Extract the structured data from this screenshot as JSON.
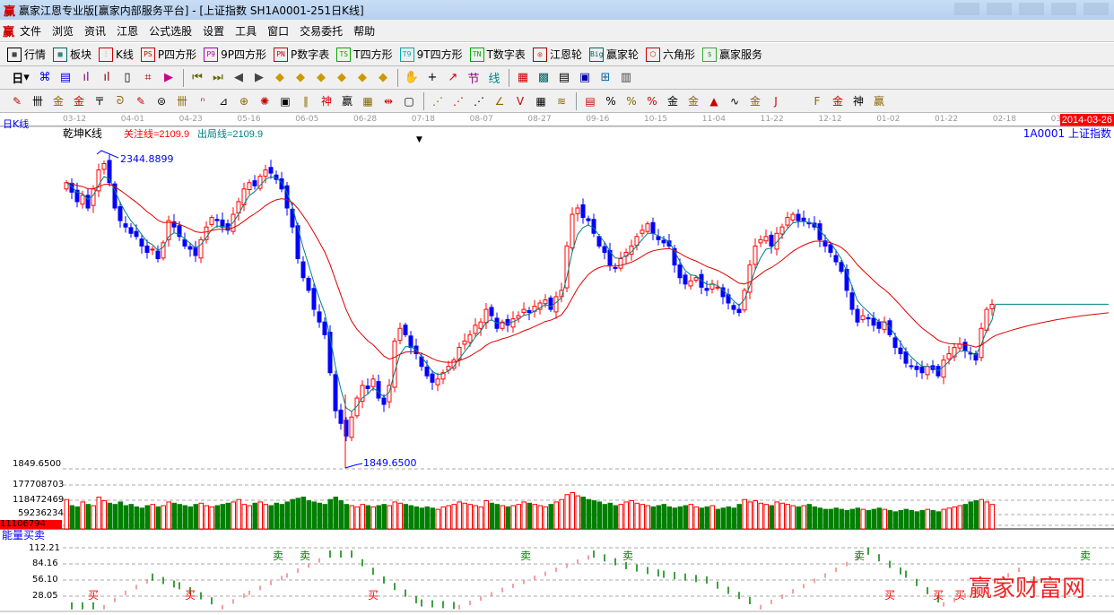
{
  "window": {
    "title": "赢家江恩专业版[赢家内部服务平台] - [上证指数  SH1A0001-251日K线]",
    "logo": "赢"
  },
  "menu": [
    "文件",
    "浏览",
    "资讯",
    "江恩",
    "公式选股",
    "设置",
    "工具",
    "窗口",
    "交易委托",
    "帮助"
  ],
  "toolbar1": [
    {
      "icon": "grid-icon",
      "code": "▦",
      "label": "行情"
    },
    {
      "icon": "blocks-icon",
      "code": "▩",
      "label": "板块"
    },
    {
      "icon": "candles-icon",
      "code": "⫶",
      "label": "K线"
    },
    {
      "icon": "ps-icon",
      "code": "PS",
      "label": "P四方形"
    },
    {
      "icon": "p9-icon",
      "code": "P9",
      "label": "9P四方形"
    },
    {
      "icon": "pn-icon",
      "code": "PN",
      "label": "P数字表"
    },
    {
      "icon": "ts-icon",
      "code": "TS",
      "label": "T四方形"
    },
    {
      "icon": "t9-icon",
      "code": "T9",
      "label": "9T四方形"
    },
    {
      "icon": "tn-icon",
      "code": "TN",
      "label": "T数字表"
    },
    {
      "icon": "wheel-icon",
      "code": "◎",
      "label": "江恩轮"
    },
    {
      "icon": "big-icon",
      "code": "Big",
      "label": "赢家轮"
    },
    {
      "icon": "hexagon-icon",
      "code": "⬡",
      "label": "六角形"
    },
    {
      "icon": "dollar-icon",
      "code": "$",
      "label": "赢家服务"
    }
  ],
  "toolbar2": {
    "period": "日",
    "icons": [
      "chart-icon",
      "doc-icon",
      "ma3-icon",
      "ma9-icon",
      "candle-icon",
      "pattern-icon",
      "flag-icon",
      "first-icon",
      "last-icon",
      "prev-icon",
      "next-icon",
      "arrow-left-icon",
      "arrow-right-icon",
      "arrow-up-icon",
      "arrow-down-icon",
      "expand-icon",
      "shrink-icon",
      "hand-icon",
      "crosshair-icon",
      "draw-icon",
      "jie-icon",
      "xian-icon",
      "calendar-icon",
      "calculator-icon",
      "notes-icon",
      "save-icon",
      "network-icon",
      "print-icon"
    ]
  },
  "toolbar3": {
    "icons": [
      "pen-icon",
      "lines-icon",
      "gold1-icon",
      "gold2-icon",
      "fib-icon",
      "spiral-icon",
      "pen2-icon",
      "circle-icon",
      "bars-icon",
      "n2-icon",
      "triangle-icon",
      "target-icon",
      "web-icon",
      "square-icon",
      "slash-icon",
      "shen-icon",
      "ying-icon",
      "grid2-icon",
      "span-icon",
      "box-icon",
      "fan-icon",
      "fan2-icon",
      "fan3-icon",
      "angle-icon",
      "v-icon",
      "grid3-icon",
      "parallel-icon",
      "table-icon",
      "pct-up-icon",
      "percent-icon",
      "pct-line-icon",
      "gold-circle-icon",
      "gold-line-icon",
      "torch-icon",
      "wave-icon",
      "gold-bar-icon",
      "j-icon",
      "f-icon",
      "gold-fan-icon",
      "shen-fan-icon",
      "ying-fan-icon",
      "si-fan-icon"
    ]
  },
  "dates": [
    "03-12",
    "04-01",
    "04-23",
    "05-16",
    "06-05",
    "06-28",
    "07-18",
    "08-07",
    "08-27",
    "09-16",
    "10-15",
    "11-04",
    "11-22",
    "12-12",
    "01-02",
    "01-22",
    "02-18",
    "03-"
  ],
  "current_date": "2014-03-26",
  "panel": {
    "period_label": "日K线",
    "indicator": "乾坤K线",
    "focus_line": "关注线=2109.9",
    "exit_line": "出局线=2109.9",
    "symbol": "1A0001  上证指数",
    "high_label": "2344.8899",
    "low_label": "1849.6500",
    "low_axis": "1849.6500"
  },
  "volume": {
    "axis": [
      "177708703",
      "118472469",
      "59236234"
    ],
    "current": "11106794"
  },
  "energy": {
    "title": "能量买卖",
    "axis": [
      "112.21",
      "84.16",
      "56.10",
      "28.05"
    ],
    "buy": "买",
    "sell": "卖"
  },
  "watermark": "赢家财富网",
  "colors": {
    "up": "#ff0000",
    "down": "#0000ff",
    "ma_short": "#008080",
    "ma_long": "#e00000",
    "vol_down": "#008000",
    "sell": "#008000",
    "buy": "#ff0000"
  },
  "chart_data": {
    "type": "candlestick",
    "price_range": [
      1849.65,
      2344.89
    ],
    "closes": [
      2300,
      2285,
      2270,
      2280,
      2260,
      2290,
      2320,
      2330,
      2300,
      2260,
      2240,
      2230,
      2220,
      2215,
      2200,
      2190,
      2195,
      2180,
      2205,
      2240,
      2230,
      2215,
      2200,
      2195,
      2185,
      2210,
      2230,
      2245,
      2240,
      2230,
      2225,
      2250,
      2270,
      2290,
      2300,
      2295,
      2310,
      2320,
      2315,
      2305,
      2290,
      2260,
      2230,
      2180,
      2150,
      2130,
      2100,
      2080,
      2060,
      2000,
      1940,
      1920,
      1900,
      1930,
      1960,
      1980,
      1975,
      1990,
      1960,
      1950,
      1980,
      2050,
      2070,
      2060,
      2040,
      2030,
      2010,
      1995,
      1985,
      1990,
      2000,
      2010,
      2020,
      2040,
      2050,
      2060,
      2075,
      2080,
      2100,
      2090,
      2070,
      2080,
      2075,
      2085,
      2090,
      2100,
      2095,
      2105,
      2110,
      2115,
      2100,
      2120,
      2130,
      2200,
      2250,
      2260,
      2245,
      2240,
      2220,
      2200,
      2190,
      2170,
      2165,
      2180,
      2190,
      2200,
      2215,
      2225,
      2235,
      2220,
      2210,
      2205,
      2200,
      2170,
      2150,
      2140,
      2145,
      2150,
      2135,
      2130,
      2140,
      2135,
      2120,
      2110,
      2100,
      2095,
      2130,
      2170,
      2200,
      2210,
      2215,
      2200,
      2220,
      2230,
      2245,
      2250,
      2240,
      2240,
      2235,
      2230,
      2210,
      2200,
      2190,
      2175,
      2160,
      2130,
      2100,
      2080,
      2090,
      2085,
      2075,
      2070,
      2080,
      2060,
      2040,
      2030,
      2015,
      2010,
      2005,
      2000,
      2010,
      2005,
      1995,
      2020,
      2030,
      2040,
      2045,
      2035,
      2030,
      2020,
      2070,
      2100,
      2108
    ],
    "volumes_m": [
      120,
      95,
      90,
      110,
      100,
      95,
      130,
      115,
      105,
      100,
      110,
      95,
      100,
      90,
      85,
      95,
      100,
      90,
      95,
      110,
      105,
      100,
      95,
      90,
      100,
      105,
      95,
      90,
      95,
      100,
      105,
      110,
      120,
      100,
      95,
      105,
      110,
      100,
      95,
      105,
      100,
      110,
      120,
      125,
      130,
      115,
      110,
      105,
      100,
      120,
      130,
      115,
      100,
      95,
      90,
      100,
      95,
      90,
      95,
      100,
      95,
      110,
      105,
      100,
      95,
      90,
      85,
      90,
      85,
      80,
      90,
      95,
      100,
      110,
      105,
      100,
      95,
      90,
      115,
      105,
      100,
      95,
      90,
      95,
      100,
      110,
      105,
      100,
      95,
      90,
      100,
      110,
      120,
      140,
      148,
      135,
      130,
      120,
      115,
      110,
      100,
      105,
      95,
      100,
      110,
      115,
      105,
      100,
      95,
      90,
      95,
      100,
      90,
      85,
      90,
      95,
      100,
      90,
      85,
      90,
      95,
      80,
      85,
      90,
      85,
      100,
      120,
      110,
      115,
      105,
      100,
      95,
      110,
      105,
      100,
      95,
      90,
      95,
      100,
      90,
      85,
      80,
      80,
      85,
      80,
      75,
      80,
      85,
      80,
      75,
      80,
      85,
      80,
      75,
      70,
      75,
      80,
      75,
      70,
      75,
      80,
      75,
      70,
      80,
      85,
      90,
      95,
      100,
      110,
      115,
      120,
      110,
      100
    ],
    "energy_keypoints": [
      [
        0,
        5
      ],
      [
        6,
        5
      ],
      [
        10,
        30
      ],
      [
        15,
        55
      ],
      [
        20,
        40
      ],
      [
        28,
        5
      ],
      [
        33,
        30
      ],
      [
        40,
        60
      ],
      [
        48,
        95
      ],
      [
        52,
        95
      ],
      [
        58,
        50
      ],
      [
        65,
        10
      ],
      [
        72,
        5
      ],
      [
        80,
        35
      ],
      [
        90,
        70
      ],
      [
        97,
        95
      ],
      [
        103,
        75
      ],
      [
        110,
        60
      ],
      [
        118,
        50
      ],
      [
        128,
        5
      ],
      [
        140,
        60
      ],
      [
        148,
        100
      ],
      [
        155,
        60
      ],
      [
        162,
        10
      ],
      [
        170,
        40
      ],
      [
        178,
        80
      ]
    ],
    "buy_marks": [
      3,
      21,
      55,
      151,
      160,
      164
    ],
    "sell_marks": [
      39,
      44,
      85,
      104,
      147,
      189
    ]
  }
}
